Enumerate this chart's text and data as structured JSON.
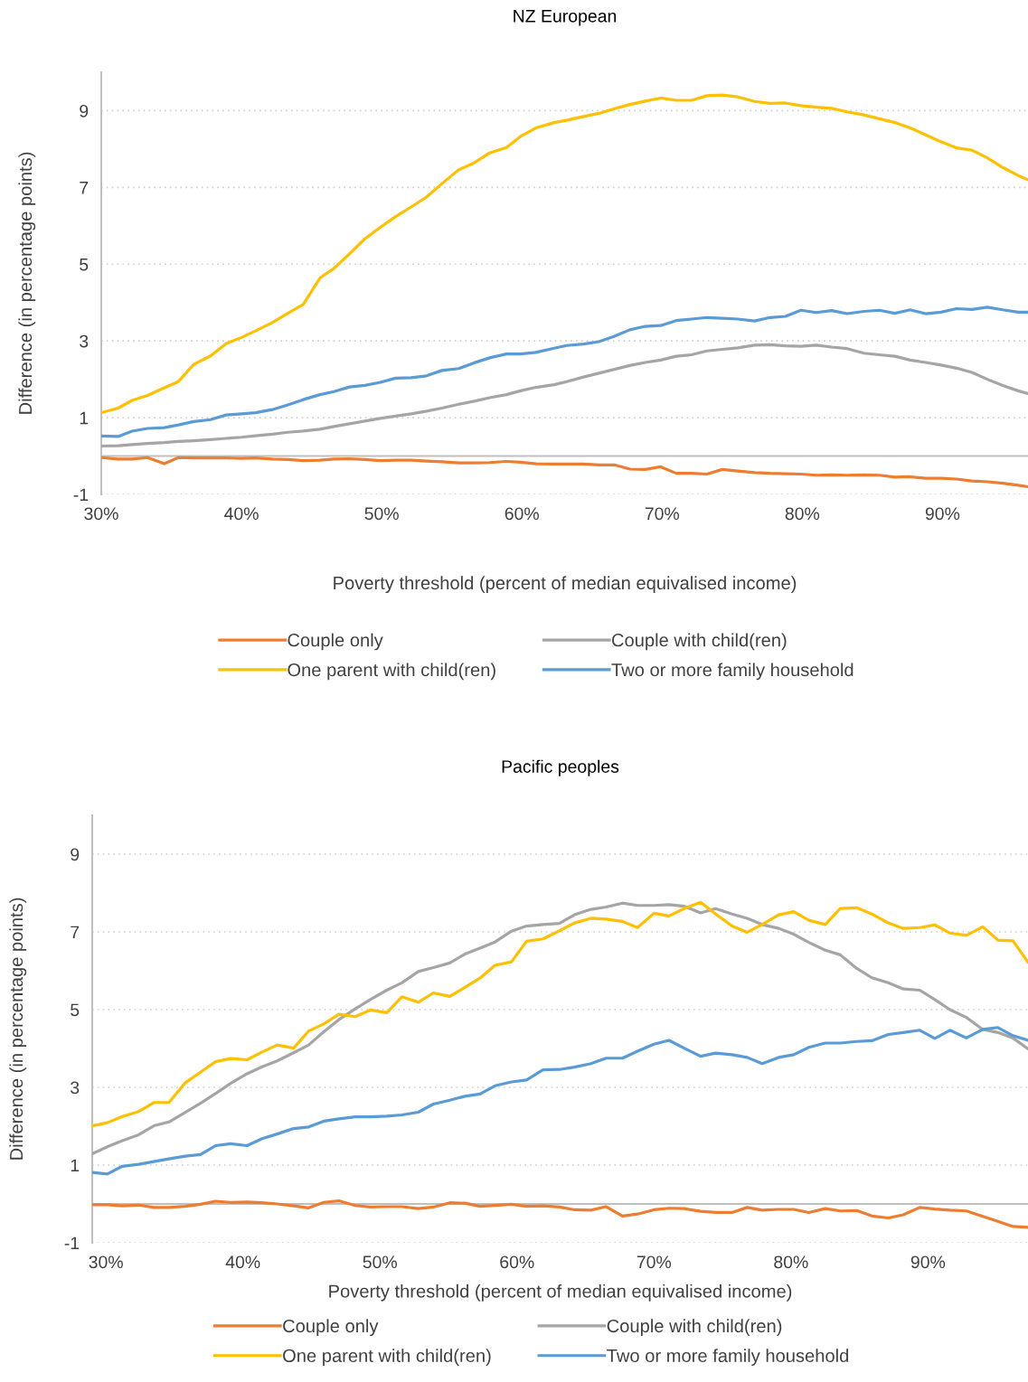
{
  "chart_data": [
    {
      "type": "line",
      "title": "NZ European",
      "xlabel": "Poverty threshold (percent of median equivalised income)",
      "ylabel": "Difference (in percentage points)",
      "x": [
        30,
        31.2,
        32.2,
        33.3,
        34.5,
        35.5,
        36.6,
        37.8,
        38.9,
        40,
        41,
        42.2,
        43.3,
        44.4,
        45.6,
        46.6,
        47.7,
        48.8,
        49.9,
        51,
        52.1,
        53.2,
        54.3,
        55.5,
        56.6,
        57.7,
        58.9,
        59.9,
        61,
        62.3,
        63.2,
        64.4,
        65.5,
        66.6,
        67.7,
        68.8,
        69.9,
        71,
        72.1,
        73.2,
        74.3,
        75.4,
        76.6,
        77.7,
        78.8,
        79.9,
        81,
        82.1,
        83.2,
        84.4,
        85.5,
        86.6,
        87.7,
        88.8,
        89.9,
        91,
        92.1,
        93.2,
        94.3,
        95.4,
        96.1
      ],
      "series": [
        {
          "name": "Couple only",
          "color": "#ed7d31",
          "values": [
            -0.04,
            -0.08,
            -0.08,
            -0.04,
            -0.2,
            -0.04,
            -0.05,
            -0.05,
            -0.05,
            -0.06,
            -0.05,
            -0.08,
            -0.09,
            -0.12,
            -0.11,
            -0.08,
            -0.07,
            -0.09,
            -0.12,
            -0.11,
            -0.11,
            -0.13,
            -0.15,
            -0.18,
            -0.18,
            -0.17,
            -0.14,
            -0.16,
            -0.2,
            -0.21,
            -0.21,
            -0.21,
            -0.23,
            -0.23,
            -0.34,
            -0.35,
            -0.28,
            -0.45,
            -0.45,
            -0.47,
            -0.35,
            -0.39,
            -0.43,
            -0.45,
            -0.46,
            -0.47,
            -0.5,
            -0.49,
            -0.5,
            -0.49,
            -0.5,
            -0.55,
            -0.54,
            -0.58,
            -0.58,
            -0.6,
            -0.65,
            -0.67,
            -0.71,
            -0.76,
            -0.8
          ]
        },
        {
          "name": "Couple with child(ren)",
          "color": "#a5a5a5",
          "values": [
            0.26,
            0.27,
            0.3,
            0.33,
            0.35,
            0.38,
            0.4,
            0.43,
            0.46,
            0.49,
            0.53,
            0.57,
            0.62,
            0.65,
            0.7,
            0.77,
            0.84,
            0.91,
            0.98,
            1.04,
            1.1,
            1.17,
            1.25,
            1.35,
            1.43,
            1.52,
            1.6,
            1.7,
            1.79,
            1.86,
            1.94,
            2.06,
            2.16,
            2.26,
            2.36,
            2.44,
            2.5,
            2.6,
            2.64,
            2.74,
            2.78,
            2.82,
            2.89,
            2.9,
            2.87,
            2.86,
            2.89,
            2.84,
            2.8,
            2.68,
            2.64,
            2.6,
            2.5,
            2.44,
            2.37,
            2.29,
            2.18,
            2.0,
            1.84,
            1.7,
            1.63
          ]
        },
        {
          "name": "One parent with child(ren)",
          "color": "#ffc000",
          "values": [
            1.13,
            1.25,
            1.45,
            1.58,
            1.78,
            1.94,
            2.39,
            2.61,
            2.93,
            3.09,
            3.26,
            3.48,
            3.72,
            3.95,
            4.64,
            4.89,
            5.27,
            5.66,
            5.96,
            6.24,
            6.49,
            6.75,
            7.1,
            7.46,
            7.64,
            7.9,
            8.04,
            8.33,
            8.55,
            8.69,
            8.75,
            8.85,
            8.93,
            9.05,
            9.16,
            9.25,
            9.33,
            9.27,
            9.27,
            9.39,
            9.41,
            9.36,
            9.24,
            9.19,
            9.2,
            9.13,
            9.09,
            9.06,
            8.97,
            8.89,
            8.79,
            8.69,
            8.55,
            8.37,
            8.19,
            8.03,
            7.97,
            7.77,
            7.52,
            7.31,
            7.2
          ]
        },
        {
          "name": "Two or more family household",
          "color": "#5b9bd5",
          "values": [
            0.52,
            0.51,
            0.65,
            0.72,
            0.74,
            0.81,
            0.9,
            0.95,
            1.07,
            1.1,
            1.13,
            1.21,
            1.33,
            1.47,
            1.6,
            1.68,
            1.8,
            1.84,
            1.92,
            2.03,
            2.04,
            2.09,
            2.23,
            2.28,
            2.43,
            2.56,
            2.66,
            2.66,
            2.7,
            2.81,
            2.88,
            2.92,
            2.98,
            3.12,
            3.29,
            3.38,
            3.4,
            3.53,
            3.57,
            3.61,
            3.59,
            3.57,
            3.52,
            3.61,
            3.64,
            3.8,
            3.74,
            3.79,
            3.71,
            3.77,
            3.8,
            3.72,
            3.81,
            3.71,
            3.75,
            3.84,
            3.82,
            3.88,
            3.81,
            3.75,
            3.75
          ]
        }
      ],
      "xlim": [
        30,
        96.1
      ],
      "ylim": [
        -1,
        10
      ],
      "xticks": [
        {
          "value": 30,
          "label": "30%"
        },
        {
          "value": 40,
          "label": "40%"
        },
        {
          "value": 50,
          "label": "50%"
        },
        {
          "value": 60,
          "label": "60%"
        },
        {
          "value": 70,
          "label": "70%"
        },
        {
          "value": 80,
          "label": "80%"
        },
        {
          "value": 90,
          "label": "90%"
        }
      ],
      "yticks": [
        -1,
        1,
        3,
        5,
        7,
        9
      ],
      "grid": "y",
      "legend": "bottom",
      "ref_lines": [
        {
          "axis": "y",
          "value": 0,
          "color": "#bfbfbf"
        }
      ]
    },
    {
      "type": "line",
      "title": "Pacific peoples",
      "xlabel": "Poverty threshold (percent of median equivalised income)",
      "ylabel": "Difference (in percentage points)",
      "x": [
        29.0,
        30.1,
        31.2,
        32.4,
        33.5,
        34.6,
        35.8,
        36.9,
        38.0,
        39.1,
        40.3,
        41.4,
        42.5,
        43.7,
        44.8,
        45.9,
        47.0,
        48.2,
        49.3,
        50.5,
        51.6,
        52.8,
        53.9,
        55.1,
        56.2,
        57.3,
        58.4,
        59.6,
        60.7,
        61.9,
        63.1,
        64.2,
        65.4,
        66.5,
        67.7,
        68.8,
        70.0,
        71.1,
        72.2,
        73.4,
        74.5,
        75.7,
        76.8,
        77.9,
        79.1,
        80.2,
        81.3,
        82.5,
        83.6,
        84.8,
        85.9,
        87.1,
        88.2,
        89.4,
        90.5,
        91.6,
        92.8,
        94.0,
        95.1,
        96.2,
        97.3
      ],
      "series": [
        {
          "name": "Couple only",
          "color": "#ed7d31",
          "values": [
            -0.02,
            -0.02,
            -0.05,
            -0.03,
            -0.09,
            -0.09,
            -0.06,
            -0.01,
            0.07,
            0.04,
            0.05,
            0.03,
            0.0,
            -0.05,
            -0.1,
            0.04,
            0.08,
            -0.04,
            -0.08,
            -0.07,
            -0.07,
            -0.12,
            -0.08,
            0.03,
            0.02,
            -0.06,
            -0.04,
            -0.01,
            -0.06,
            -0.05,
            -0.08,
            -0.15,
            -0.16,
            -0.07,
            -0.31,
            -0.26,
            -0.15,
            -0.11,
            -0.12,
            -0.19,
            -0.22,
            -0.22,
            -0.09,
            -0.16,
            -0.14,
            -0.14,
            -0.22,
            -0.12,
            -0.18,
            -0.17,
            -0.31,
            -0.36,
            -0.28,
            -0.09,
            -0.13,
            -0.16,
            -0.18,
            -0.32,
            -0.45,
            -0.58,
            -0.6
          ]
        },
        {
          "name": "Couple with child(ren)",
          "color": "#a5a5a5",
          "values": [
            1.29,
            1.47,
            1.63,
            1.78,
            2.01,
            2.11,
            2.36,
            2.59,
            2.84,
            3.1,
            3.35,
            3.53,
            3.68,
            3.89,
            4.09,
            4.43,
            4.74,
            5.02,
            5.26,
            5.5,
            5.69,
            5.98,
            6.08,
            6.2,
            6.43,
            6.58,
            6.74,
            7.02,
            7.15,
            7.19,
            7.22,
            7.44,
            7.58,
            7.64,
            7.74,
            7.68,
            7.68,
            7.7,
            7.66,
            7.49,
            7.6,
            7.46,
            7.35,
            7.19,
            7.09,
            6.94,
            6.73,
            6.53,
            6.41,
            6.06,
            5.82,
            5.69,
            5.53,
            5.5,
            5.26,
            5.0,
            4.8,
            4.49,
            4.41,
            4.27,
            3.99
          ]
        },
        {
          "name": "One parent with child(ren)",
          "color": "#ffc000",
          "values": [
            2.01,
            2.09,
            2.25,
            2.38,
            2.61,
            2.61,
            3.12,
            3.39,
            3.66,
            3.74,
            3.71,
            3.91,
            4.09,
            4.01,
            4.45,
            4.63,
            4.88,
            4.82,
            4.99,
            4.92,
            5.33,
            5.19,
            5.43,
            5.34,
            5.57,
            5.81,
            6.14,
            6.23,
            6.76,
            6.82,
            7.03,
            7.23,
            7.35,
            7.33,
            7.27,
            7.11,
            7.48,
            7.41,
            7.6,
            7.76,
            7.46,
            7.15,
            6.99,
            7.19,
            7.44,
            7.52,
            7.3,
            7.19,
            7.6,
            7.62,
            7.46,
            7.23,
            7.09,
            7.11,
            7.18,
            6.97,
            6.91,
            7.13,
            6.79,
            6.77,
            6.22
          ]
        },
        {
          "name": "Two or more family household",
          "color": "#5b9bd5",
          "values": [
            0.81,
            0.77,
            0.97,
            1.02,
            1.09,
            1.16,
            1.23,
            1.27,
            1.5,
            1.55,
            1.5,
            1.68,
            1.8,
            1.94,
            1.98,
            2.13,
            2.19,
            2.24,
            2.24,
            2.26,
            2.29,
            2.36,
            2.57,
            2.67,
            2.77,
            2.83,
            3.04,
            3.14,
            3.19,
            3.45,
            3.46,
            3.52,
            3.61,
            3.75,
            3.75,
            3.93,
            4.11,
            4.21,
            4.01,
            3.8,
            3.88,
            3.84,
            3.77,
            3.61,
            3.77,
            3.84,
            4.03,
            4.14,
            4.14,
            4.18,
            4.2,
            4.36,
            4.41,
            4.47,
            4.26,
            4.47,
            4.27,
            4.49,
            4.54,
            4.33,
            4.21
          ]
        }
      ],
      "xlim": [
        29.0,
        97.3
      ],
      "ylim": [
        -1,
        10
      ],
      "xticks": [
        {
          "value": 30,
          "label": "30%"
        },
        {
          "value": 40,
          "label": "40%"
        },
        {
          "value": 50,
          "label": "50%"
        },
        {
          "value": 60,
          "label": "60%"
        },
        {
          "value": 70,
          "label": "70%"
        },
        {
          "value": 80,
          "label": "80%"
        },
        {
          "value": 90,
          "label": "90%"
        }
      ],
      "yticks": [
        -1,
        1,
        3,
        5,
        7,
        9
      ],
      "grid": "y",
      "legend": "bottom",
      "ref_lines": [
        {
          "axis": "y",
          "value": 0,
          "color": "#bfbfbf"
        }
      ]
    }
  ]
}
